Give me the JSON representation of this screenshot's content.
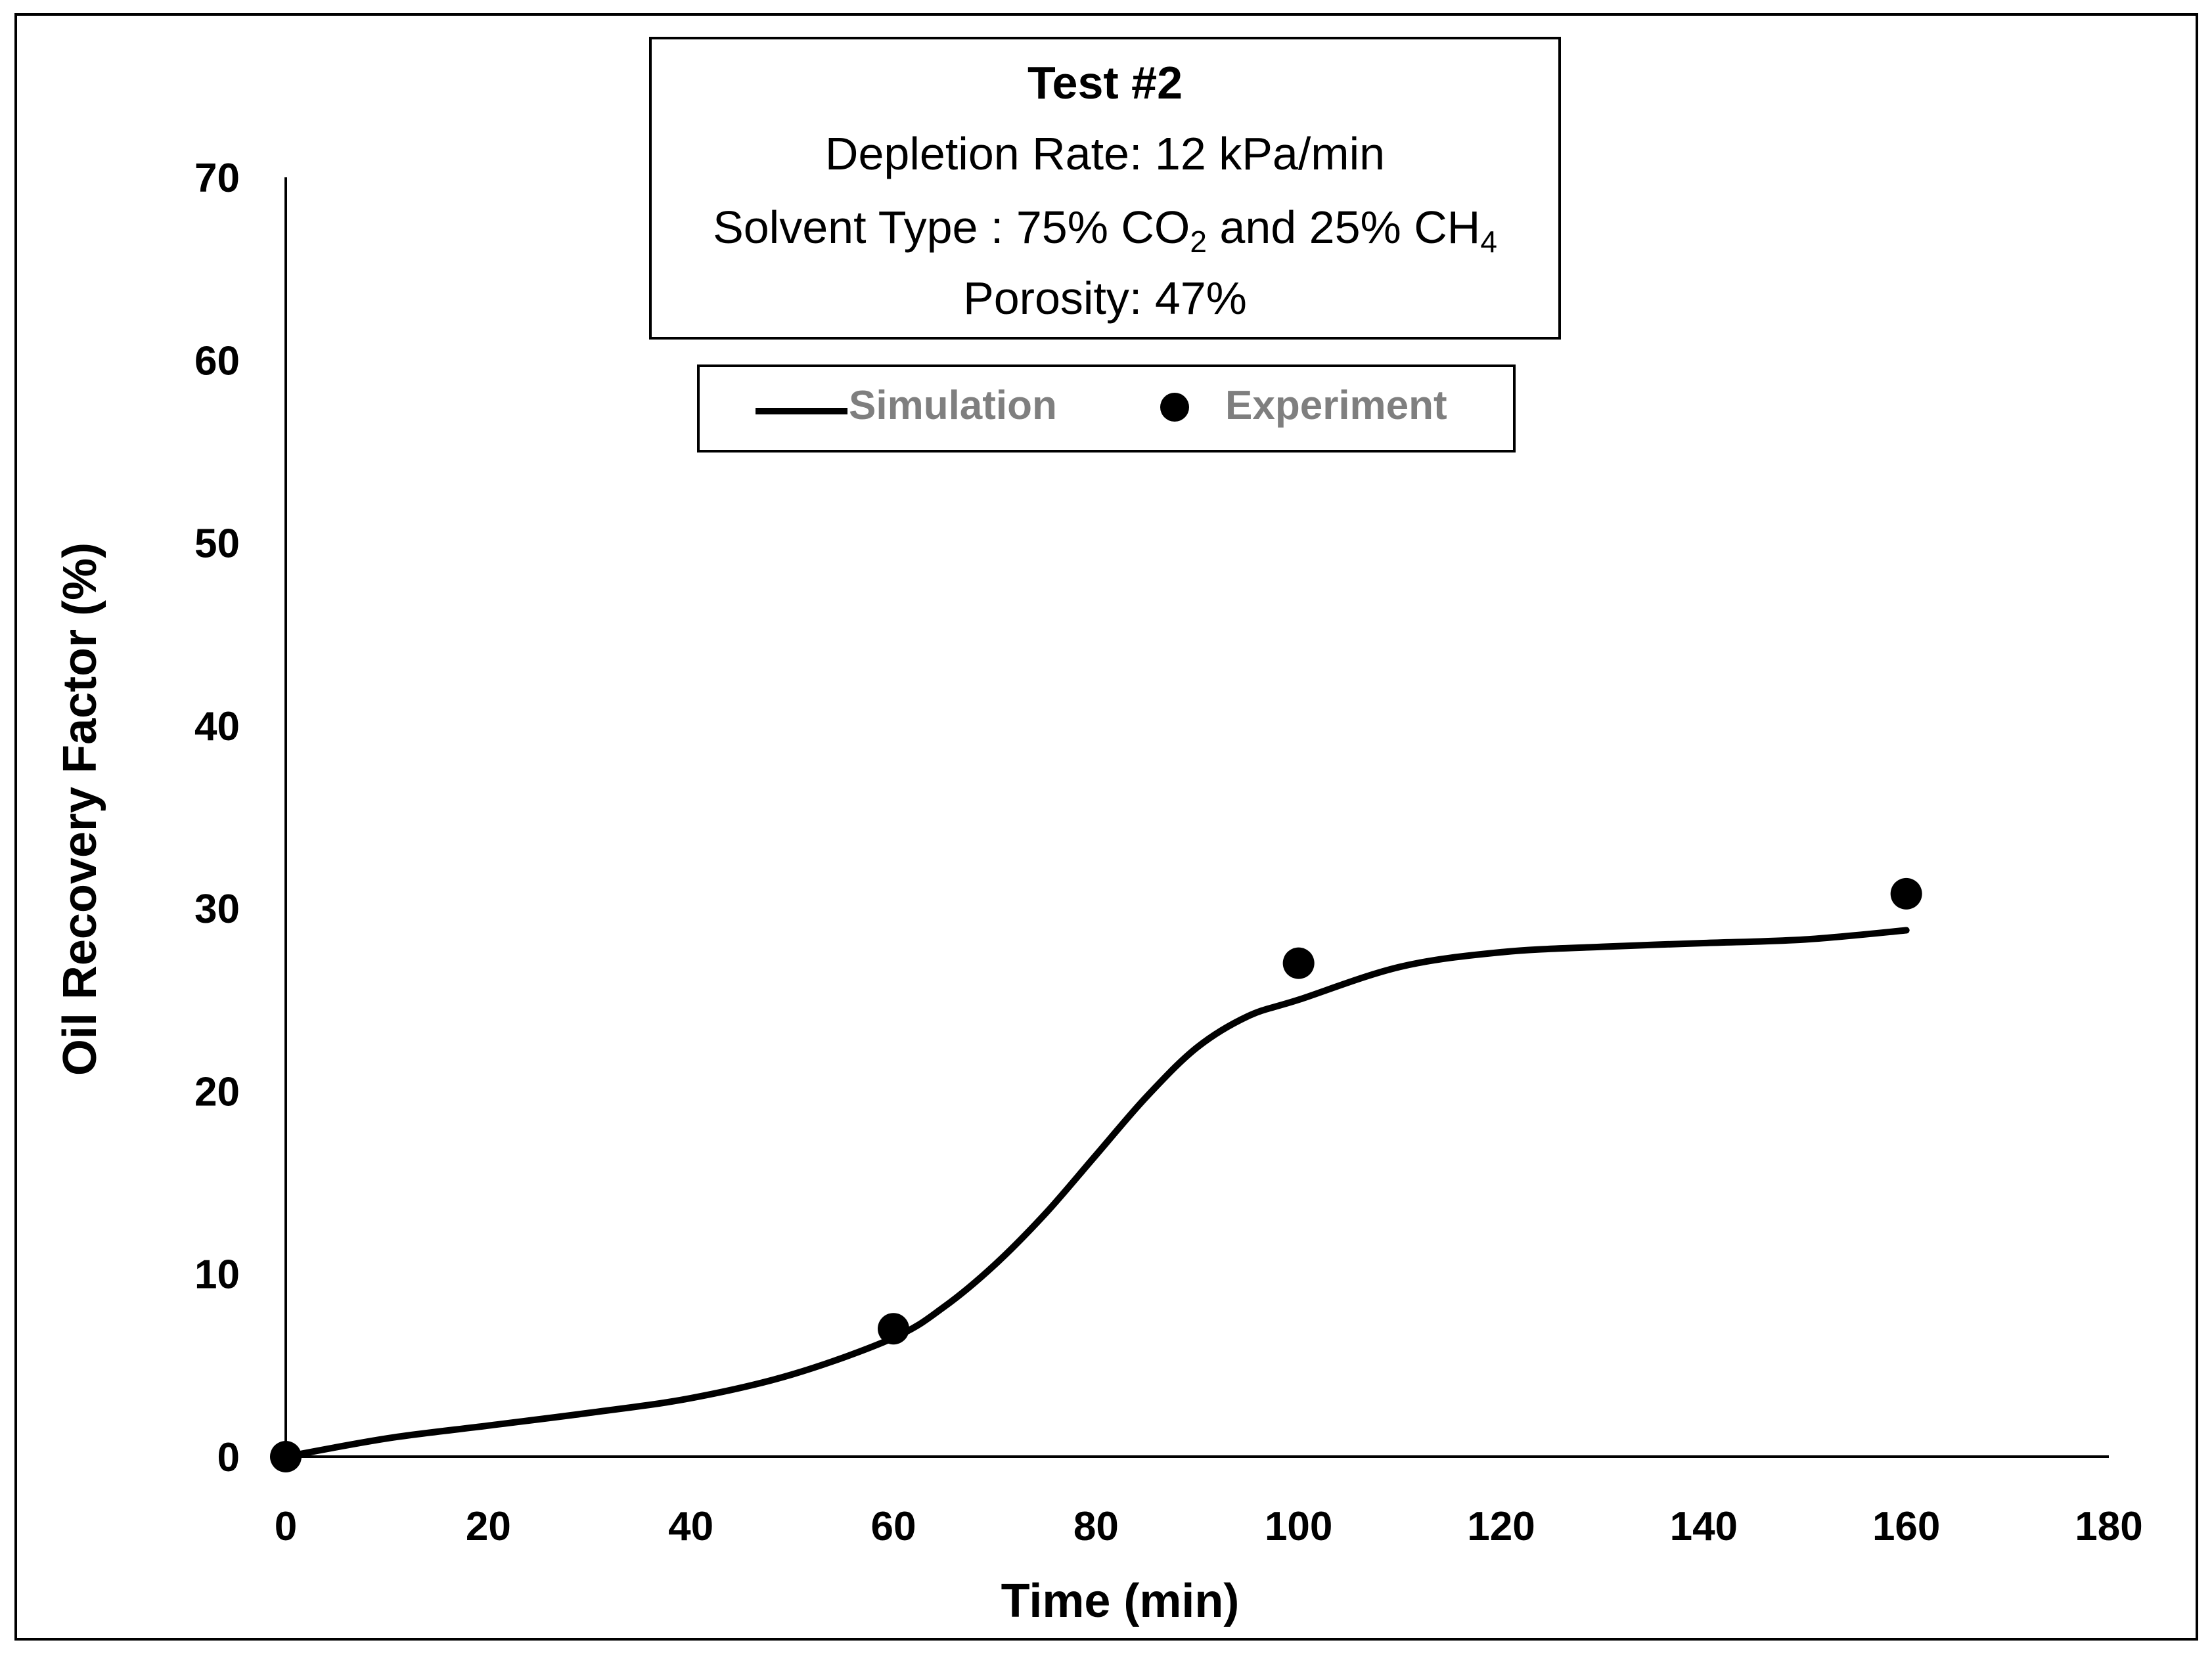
{
  "chart_data": {
    "type": "line",
    "title": "Test #2",
    "info_lines": {
      "depletion_rate": "Depletion Rate: 12 kPa/min",
      "solvent_prefix": "Solvent Type : 75% CO",
      "solvent_sub_1": "2",
      "solvent_mid": " and 25% CH",
      "solvent_sub_2": "4",
      "porosity": "Porosity: 47%"
    },
    "xlabel": "Time (min)",
    "ylabel": "Oil Recovery Factor (%)",
    "xlim": [
      0,
      180
    ],
    "ylim": [
      0,
      70
    ],
    "x_ticks": [
      0,
      20,
      40,
      60,
      80,
      100,
      120,
      140,
      160,
      180
    ],
    "y_ticks": [
      0,
      10,
      20,
      30,
      40,
      50,
      60,
      70
    ],
    "legend": {
      "placement": "top-center",
      "entries": [
        "Simulation",
        "Experiment"
      ]
    },
    "series": [
      {
        "name": "Simulation",
        "kind": "line",
        "x": [
          0,
          10,
          20,
          30,
          40,
          50,
          60,
          65,
          70,
          75,
          80,
          85,
          90,
          95,
          100,
          110,
          120,
          130,
          140,
          150,
          160
        ],
        "y": [
          0,
          1.0,
          1.7,
          2.4,
          3.2,
          4.5,
          6.5,
          8.2,
          10.5,
          13.3,
          16.5,
          19.7,
          22.4,
          24.1,
          25.0,
          26.8,
          27.6,
          27.9,
          28.1,
          28.3,
          28.8
        ]
      },
      {
        "name": "Experiment",
        "kind": "scatter",
        "x": [
          0,
          60,
          100,
          160
        ],
        "y": [
          0,
          7,
          27,
          30.8
        ]
      }
    ],
    "colors": {
      "line": "#000000",
      "marker": "#000000",
      "legend_text": "#7f7f7f",
      "axis": "#000000",
      "text": "#000000"
    }
  }
}
